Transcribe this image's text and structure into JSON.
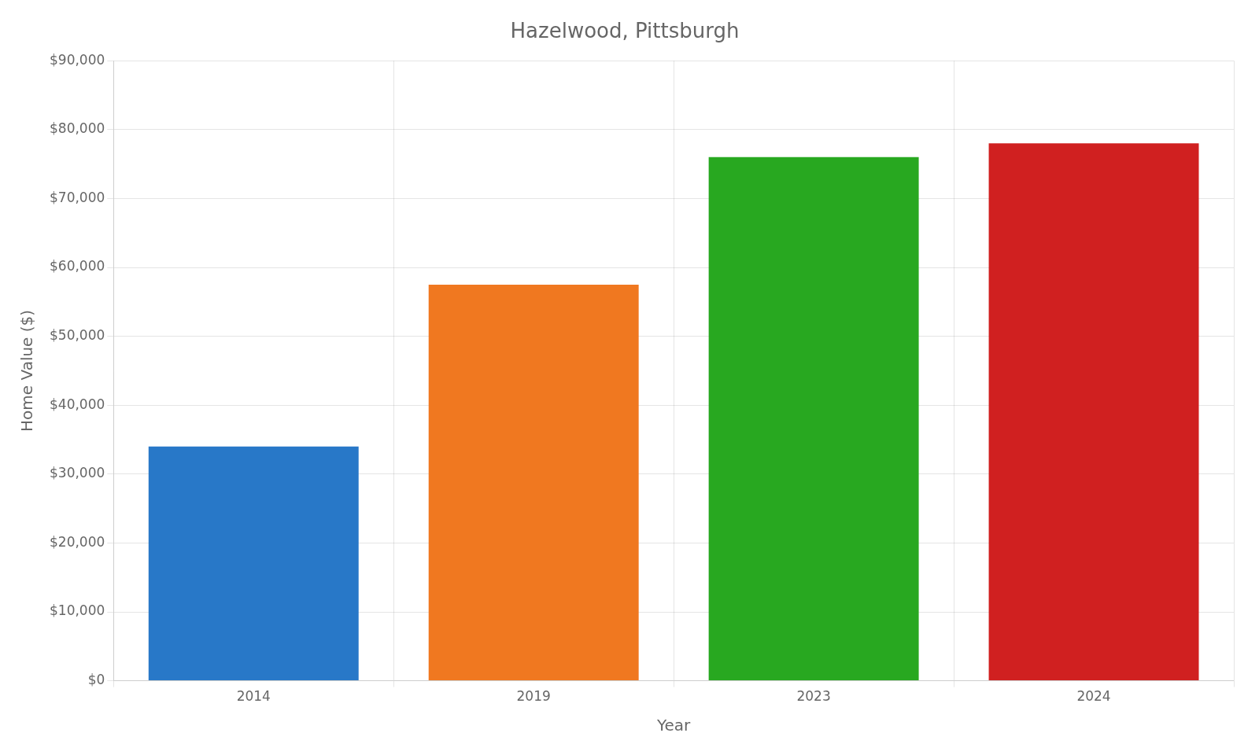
{
  "chart_data": {
    "type": "bar",
    "title": "Hazelwood, Pittsburgh",
    "xlabel": "Year",
    "ylabel": "Home Value ($)",
    "categories": [
      "2014",
      "2019",
      "2023",
      "2024"
    ],
    "values": [
      34000,
      57500,
      76000,
      78000
    ],
    "colors": [
      "#2878c8",
      "#f07820",
      "#28a820",
      "#d02020"
    ],
    "ylim": [
      0,
      90000
    ],
    "yticks": [
      {
        "value": 0,
        "label": "$0"
      },
      {
        "value": 10000,
        "label": "$10,000"
      },
      {
        "value": 20000,
        "label": "$20,000"
      },
      {
        "value": 30000,
        "label": "$30,000"
      },
      {
        "value": 40000,
        "label": "$40,000"
      },
      {
        "value": 50000,
        "label": "$50,000"
      },
      {
        "value": 60000,
        "label": "$60,000"
      },
      {
        "value": 70000,
        "label": "$70,000"
      },
      {
        "value": 80000,
        "label": "$80,000"
      },
      {
        "value": 90000,
        "label": "$90,000"
      }
    ],
    "grid": true
  }
}
